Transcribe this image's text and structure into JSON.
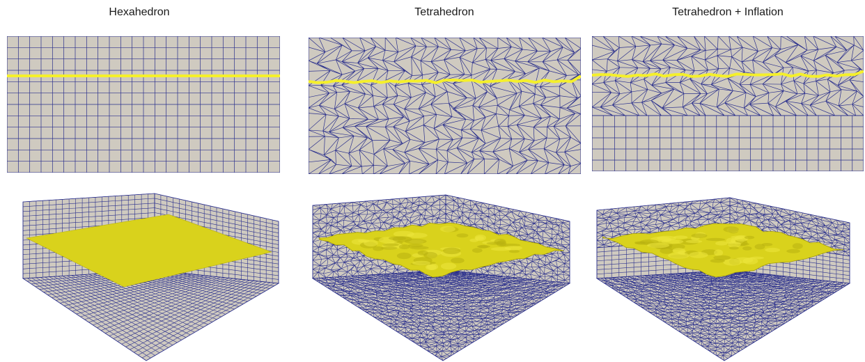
{
  "titles": {
    "hex": "Hexahedron",
    "tet": "Tetrahedron",
    "tet_inflation": "Tetrahedron + Inflation"
  },
  "colors": {
    "background": "#ffffff",
    "mesh_fill": "#cfcac0",
    "mesh_line": "#2a2f8c",
    "interface_line": "#f5f02a",
    "interface_surface": "#d9d21c",
    "interface_surface_dark": "#b8b010"
  },
  "panels": [
    {
      "id": "hex-2d",
      "mesh": "quad",
      "view": "cross-section"
    },
    {
      "id": "tet-2d",
      "mesh": "triangle",
      "view": "cross-section"
    },
    {
      "id": "tet-inflation-2d",
      "mesh": "triangle+quad",
      "view": "cross-section"
    },
    {
      "id": "hex-3d",
      "mesh": "quad",
      "view": "isometric",
      "interface": "flat"
    },
    {
      "id": "tet-3d",
      "mesh": "triangle",
      "view": "isometric",
      "interface": "wavy"
    },
    {
      "id": "tet-inflation-3d",
      "mesh": "triangle+quad",
      "view": "isometric",
      "interface": "wavy"
    }
  ]
}
